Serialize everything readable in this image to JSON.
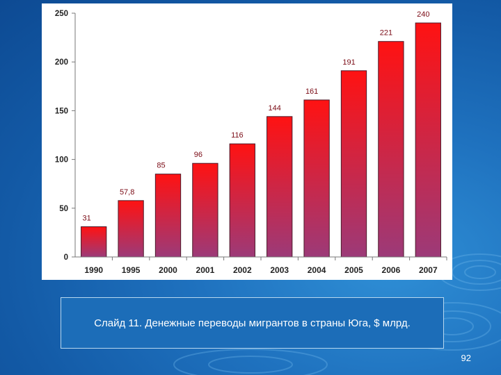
{
  "slide": {
    "caption": "Слайд 11. Денежные переводы мигрантов в страны Юга, $ млрд.",
    "page_number": "92"
  },
  "colors": {
    "bar_top": "#ff1212",
    "bar_bottom": "#9c3a78",
    "background": "#1a64b0"
  },
  "chart_data": {
    "type": "bar",
    "categories": [
      "1990",
      "1995",
      "2000",
      "2001",
      "2002",
      "2003",
      "2004",
      "2005",
      "2006",
      "2007"
    ],
    "values": [
      31,
      57.8,
      85,
      96,
      116,
      144,
      161,
      191,
      221,
      240
    ],
    "data_labels": [
      "31",
      "57,8",
      "85",
      "96",
      "116",
      "144",
      "161",
      "191",
      "221",
      "240"
    ],
    "y_ticks": [
      "0",
      "50",
      "100",
      "150",
      "200",
      "250"
    ],
    "ylim": [
      0,
      250
    ],
    "grid": false,
    "legend": "none"
  }
}
